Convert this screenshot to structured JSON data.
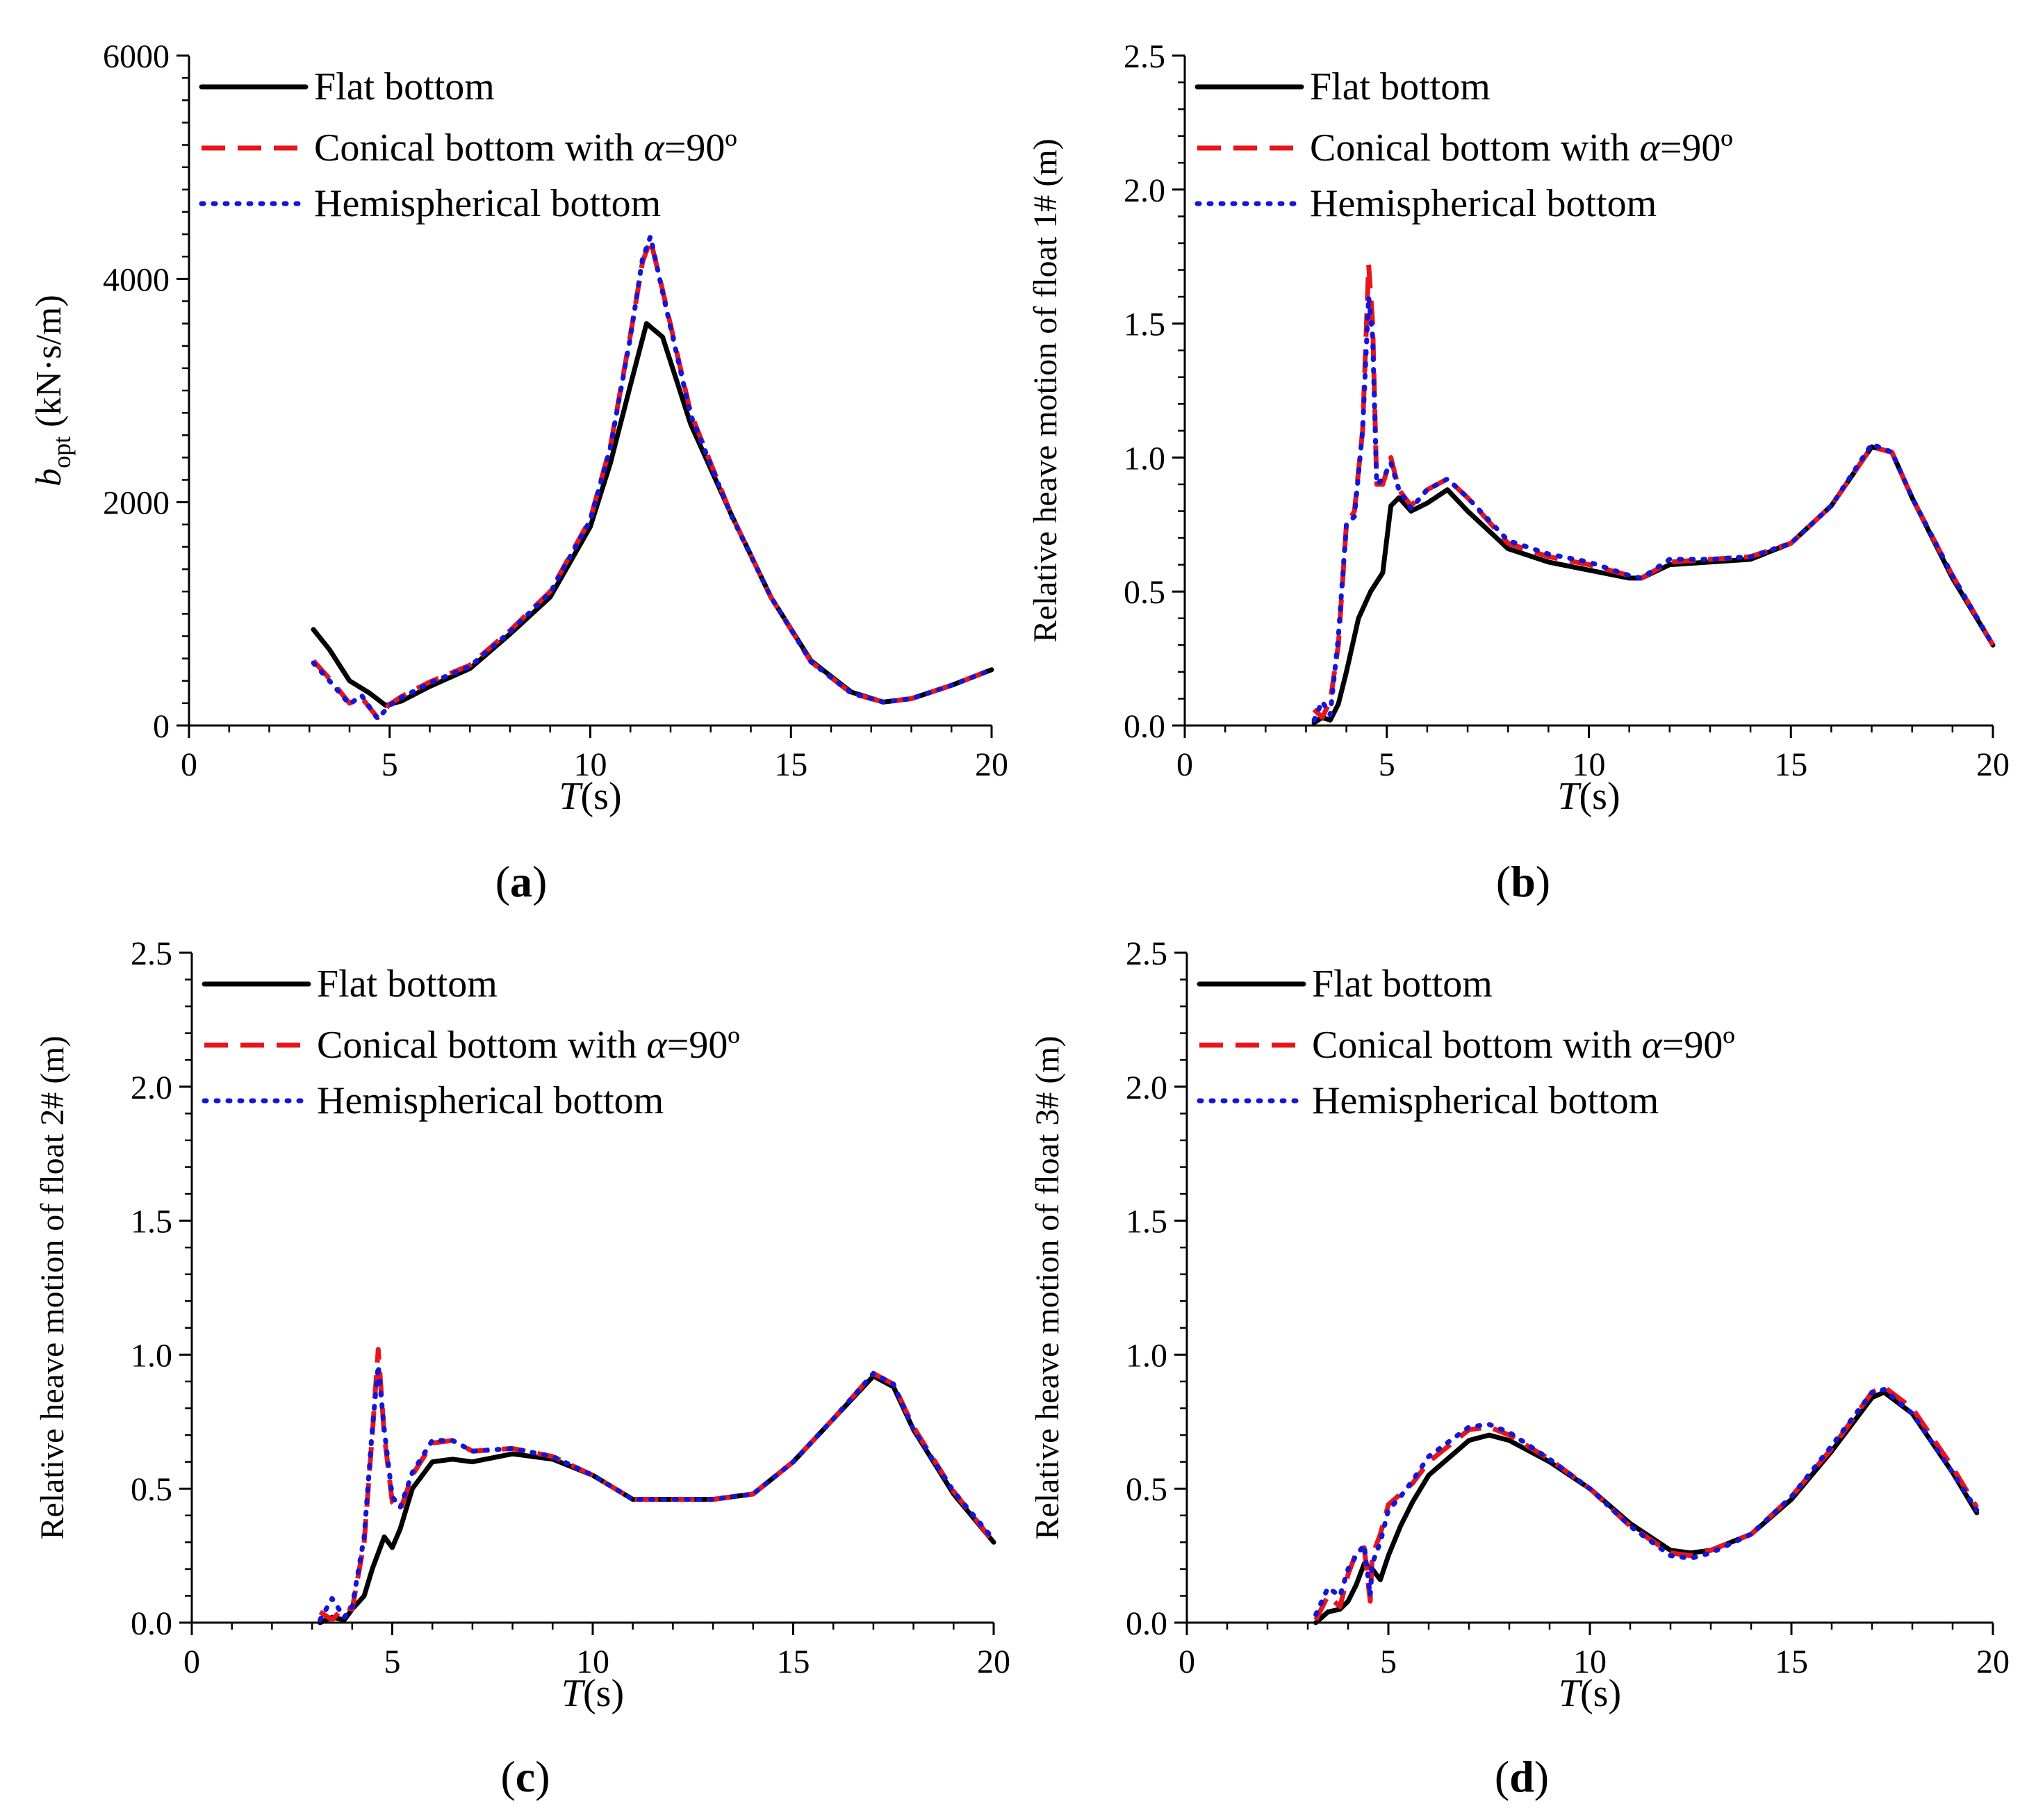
{
  "legend_entries": [
    {
      "label": "Flat bottom",
      "color": "#000000",
      "style": "solid"
    },
    {
      "label_prefix": "Conical bottom with ",
      "label_symbol": "α",
      "label_suffix": "=90º",
      "color": "#e8151b",
      "style": "dashed"
    },
    {
      "label": "Hemispherical bottom",
      "color": "#1515d6",
      "style": "dotted"
    }
  ],
  "chart_data": [
    {
      "type": "line",
      "panel_label": "(a)",
      "xlabel_symbol": "T",
      "xlabel_unit": "(s)",
      "ylabel_symbol": "b",
      "ylabel_subscript": "opt",
      "ylabel_unit": "(kN·s/m)",
      "xlim": [
        0,
        20
      ],
      "ylim": [
        0,
        6000
      ],
      "xticks": [
        0,
        5,
        10,
        15,
        20
      ],
      "yticks": [
        0,
        2000,
        4000,
        6000
      ],
      "ytick_labels": [
        "0",
        "2000",
        "4000",
        "6000"
      ],
      "grid": false,
      "legend_position": "top-left",
      "series": [
        {
          "x": [
            3.1,
            3.5,
            4,
            4.5,
            4.9,
            5.3,
            6,
            7,
            8,
            9,
            10,
            10.5,
            11,
            11.4,
            11.8,
            12.5,
            13.5,
            14.5,
            15.5,
            16.5,
            17.3,
            18,
            19,
            20
          ],
          "y": [
            860,
            680,
            400,
            290,
            180,
            220,
            350,
            510,
            820,
            1150,
            1780,
            2350,
            3050,
            3600,
            3480,
            2700,
            1900,
            1150,
            580,
            300,
            210,
            240,
            360,
            500
          ]
        },
        {
          "x": [
            3.1,
            3.5,
            4,
            4.3,
            4.7,
            5,
            5.3,
            6,
            7,
            8,
            9,
            10,
            10.5,
            11,
            11.3,
            11.5,
            11.8,
            12.5,
            13.5,
            14.5,
            15.5,
            16.5,
            17.3,
            18,
            19,
            20
          ],
          "y": [
            580,
            420,
            200,
            250,
            70,
            190,
            260,
            390,
            540,
            850,
            1200,
            1850,
            2500,
            3500,
            4150,
            4350,
            3900,
            2800,
            1900,
            1150,
            570,
            290,
            210,
            240,
            360,
            500
          ]
        },
        {
          "x": [
            3.1,
            3.5,
            4,
            4.3,
            4.7,
            5,
            5.3,
            6,
            7,
            8,
            9,
            10,
            10.5,
            11,
            11.3,
            11.5,
            11.8,
            12.5,
            13.5,
            14.5,
            15.5,
            16.5,
            17.3,
            18,
            19,
            20
          ],
          "y": [
            560,
            400,
            190,
            270,
            60,
            180,
            250,
            380,
            530,
            840,
            1190,
            1840,
            2490,
            3480,
            4180,
            4380,
            3880,
            2780,
            1890,
            1150,
            570,
            290,
            210,
            240,
            360,
            500
          ]
        }
      ]
    },
    {
      "type": "line",
      "panel_label": "(b)",
      "xlabel_symbol": "T",
      "xlabel_unit": "(s)",
      "ylabel": "Relative heave motion of float 1# (m)",
      "xlim": [
        0,
        20
      ],
      "ylim": [
        0,
        2.5
      ],
      "xticks": [
        0,
        5,
        10,
        15,
        20
      ],
      "yticks": [
        0,
        0.5,
        1.0,
        1.5,
        2.0,
        2.5
      ],
      "ytick_labels": [
        "0.0",
        "0.5",
        "1.0",
        "1.5",
        "2.0",
        "2.5"
      ],
      "grid": false,
      "legend_position": "top-left",
      "series": [
        {
          "x": [
            3.2,
            3.4,
            3.6,
            3.8,
            4,
            4.3,
            4.6,
            4.9,
            5.1,
            5.3,
            5.6,
            6,
            6.5,
            7,
            8,
            9,
            10,
            11,
            11.3,
            12,
            13,
            14,
            15,
            16,
            17,
            17.5,
            18,
            19,
            20
          ],
          "y": [
            0.01,
            0.03,
            0.02,
            0.08,
            0.2,
            0.4,
            0.5,
            0.57,
            0.82,
            0.85,
            0.8,
            0.83,
            0.88,
            0.8,
            0.66,
            0.61,
            0.58,
            0.55,
            0.55,
            0.6,
            0.61,
            0.62,
            0.68,
            0.82,
            1.04,
            1.02,
            0.85,
            0.55,
            0.3
          ]
        },
        {
          "x": [
            3.2,
            3.4,
            3.6,
            3.8,
            4,
            4.2,
            4.4,
            4.55,
            4.65,
            4.75,
            4.9,
            5.1,
            5.3,
            5.6,
            6,
            6.5,
            7,
            8,
            9,
            10,
            11,
            11.3,
            12,
            13,
            14,
            15,
            16,
            17,
            17.5,
            18,
            19,
            20
          ],
          "y": [
            0.06,
            0.03,
            0.09,
            0.3,
            0.75,
            0.8,
            1.1,
            1.72,
            1.5,
            0.9,
            0.9,
            1.0,
            0.88,
            0.82,
            0.88,
            0.92,
            0.85,
            0.68,
            0.63,
            0.6,
            0.56,
            0.55,
            0.61,
            0.62,
            0.63,
            0.68,
            0.82,
            1.04,
            1.02,
            0.85,
            0.56,
            0.3
          ]
        },
        {
          "x": [
            3.2,
            3.4,
            3.6,
            3.8,
            4,
            4.2,
            4.4,
            4.55,
            4.65,
            4.75,
            4.9,
            5.1,
            5.3,
            5.6,
            6,
            6.5,
            7,
            8,
            9,
            10,
            11,
            11.3,
            12,
            13,
            14,
            15,
            16,
            17,
            17.5,
            18,
            19,
            20
          ],
          "y": [
            0.02,
            0.09,
            0.04,
            0.33,
            0.75,
            0.78,
            1.1,
            1.6,
            1.45,
            0.9,
            0.92,
            0.98,
            0.88,
            0.81,
            0.88,
            0.92,
            0.85,
            0.69,
            0.64,
            0.61,
            0.56,
            0.55,
            0.62,
            0.62,
            0.63,
            0.68,
            0.82,
            1.05,
            1.02,
            0.85,
            0.56,
            0.3
          ]
        }
      ]
    },
    {
      "type": "line",
      "panel_label": "(c)",
      "xlabel_symbol": "T",
      "xlabel_unit": "(s)",
      "ylabel": "Relative heave motion of float 2# (m)",
      "xlim": [
        0,
        20
      ],
      "ylim": [
        0,
        2.5
      ],
      "xticks": [
        0,
        5,
        10,
        15,
        20
      ],
      "yticks": [
        0,
        0.5,
        1.0,
        1.5,
        2.0,
        2.5
      ],
      "ytick_labels": [
        "0.0",
        "0.5",
        "1.0",
        "1.5",
        "2.0",
        "2.5"
      ],
      "grid": false,
      "legend_position": "top-left",
      "series": [
        {
          "x": [
            3.2,
            3.5,
            3.8,
            4,
            4.3,
            4.5,
            4.8,
            5,
            5.2,
            5.5,
            6,
            6.5,
            7,
            8,
            9,
            10,
            11,
            12,
            13,
            14,
            15,
            16,
            17,
            17.5,
            18,
            19,
            20
          ],
          "y": [
            0.0,
            0.02,
            0.01,
            0.05,
            0.1,
            0.2,
            0.32,
            0.28,
            0.35,
            0.5,
            0.6,
            0.61,
            0.6,
            0.63,
            0.61,
            0.55,
            0.46,
            0.46,
            0.46,
            0.48,
            0.6,
            0.76,
            0.92,
            0.88,
            0.72,
            0.48,
            0.3
          ]
        },
        {
          "x": [
            3.2,
            3.5,
            3.8,
            4,
            4.3,
            4.5,
            4.65,
            4.8,
            5,
            5.2,
            5.5,
            6,
            6.5,
            7,
            8,
            9,
            10,
            11,
            12,
            13,
            14,
            15,
            16,
            17,
            17.5,
            18,
            19,
            20
          ],
          "y": [
            0.04,
            0.01,
            0.06,
            0.05,
            0.3,
            0.7,
            1.02,
            0.7,
            0.45,
            0.42,
            0.55,
            0.67,
            0.68,
            0.64,
            0.65,
            0.62,
            0.55,
            0.46,
            0.46,
            0.46,
            0.48,
            0.6,
            0.76,
            0.93,
            0.89,
            0.73,
            0.49,
            0.3
          ]
        },
        {
          "x": [
            3.2,
            3.5,
            3.8,
            4,
            4.3,
            4.5,
            4.65,
            4.8,
            5,
            5.2,
            5.5,
            6,
            6.5,
            7,
            8,
            9,
            10,
            11,
            12,
            13,
            14,
            15,
            16,
            17,
            17.5,
            18,
            19,
            20
          ],
          "y": [
            0.01,
            0.09,
            0.02,
            0.06,
            0.32,
            0.72,
            0.96,
            0.72,
            0.47,
            0.43,
            0.56,
            0.68,
            0.68,
            0.64,
            0.65,
            0.62,
            0.55,
            0.46,
            0.46,
            0.46,
            0.48,
            0.6,
            0.76,
            0.93,
            0.89,
            0.72,
            0.49,
            0.31
          ]
        }
      ]
    },
    {
      "type": "line",
      "panel_label": "(d)",
      "xlabel_symbol": "T",
      "xlabel_unit": "(s)",
      "ylabel": "Relative heave motion of float 3# (m)",
      "xlim": [
        0,
        20
      ],
      "ylim": [
        0,
        2.5
      ],
      "xticks": [
        0,
        5,
        10,
        15,
        20
      ],
      "yticks": [
        0,
        0.5,
        1.0,
        1.5,
        2.0,
        2.5
      ],
      "ytick_labels": [
        "0.0",
        "0.5",
        "1.0",
        "1.5",
        "2.0",
        "2.5"
      ],
      "grid": false,
      "legend_position": "top-left",
      "series": [
        {
          "x": [
            3.2,
            3.5,
            3.8,
            4,
            4.2,
            4.4,
            4.6,
            4.8,
            5,
            5.3,
            5.6,
            6,
            7,
            7.5,
            8,
            9,
            10,
            11,
            12,
            12.5,
            13,
            14,
            15,
            16,
            17,
            17.3,
            18,
            19,
            19.6
          ],
          "y": [
            0.0,
            0.04,
            0.05,
            0.08,
            0.14,
            0.22,
            0.2,
            0.16,
            0.25,
            0.36,
            0.45,
            0.55,
            0.68,
            0.7,
            0.68,
            0.6,
            0.5,
            0.37,
            0.27,
            0.26,
            0.27,
            0.33,
            0.46,
            0.64,
            0.84,
            0.86,
            0.78,
            0.56,
            0.41
          ]
        },
        {
          "x": [
            3.2,
            3.5,
            3.8,
            4,
            4.2,
            4.4,
            4.55,
            4.6,
            4.8,
            5,
            5.3,
            5.6,
            6,
            7,
            7.5,
            8,
            9,
            10,
            11,
            12,
            12.5,
            13,
            14,
            15,
            16,
            17,
            17.3,
            18,
            19,
            19.6
          ],
          "y": [
            0.01,
            0.1,
            0.06,
            0.18,
            0.26,
            0.28,
            0.08,
            0.25,
            0.33,
            0.44,
            0.48,
            0.52,
            0.6,
            0.72,
            0.73,
            0.7,
            0.61,
            0.5,
            0.36,
            0.26,
            0.25,
            0.27,
            0.33,
            0.47,
            0.65,
            0.86,
            0.88,
            0.8,
            0.58,
            0.43
          ]
        },
        {
          "x": [
            3.2,
            3.5,
            3.8,
            4,
            4.2,
            4.4,
            4.55,
            4.6,
            4.8,
            5,
            5.3,
            5.6,
            6,
            7,
            7.5,
            8,
            9,
            10,
            11,
            12,
            12.5,
            13,
            14,
            15,
            16,
            17,
            17.3,
            18,
            19,
            19.6
          ],
          "y": [
            0.03,
            0.13,
            0.1,
            0.2,
            0.25,
            0.29,
            0.1,
            0.22,
            0.3,
            0.42,
            0.47,
            0.53,
            0.62,
            0.73,
            0.74,
            0.71,
            0.61,
            0.5,
            0.36,
            0.25,
            0.24,
            0.26,
            0.33,
            0.47,
            0.66,
            0.86,
            0.87,
            0.78,
            0.56,
            0.42
          ]
        }
      ]
    }
  ]
}
